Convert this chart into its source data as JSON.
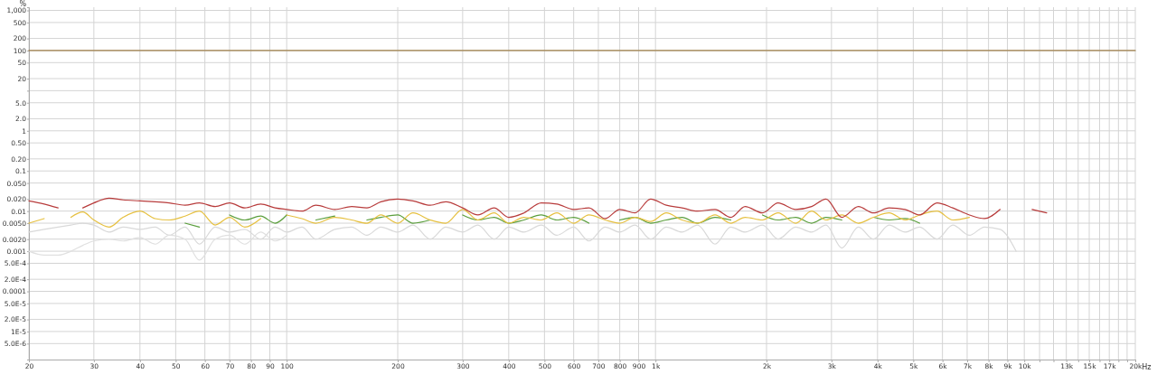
{
  "chart_data": {
    "type": "line",
    "ylabel": "%",
    "log": "xy",
    "grid": true,
    "x": [
      20,
      22,
      24,
      26,
      28,
      30,
      33,
      36,
      40,
      44,
      48,
      53,
      58,
      64,
      70,
      77,
      85,
      93,
      100,
      110,
      120,
      135,
      150,
      165,
      180,
      200,
      220,
      245,
      270,
      300,
      330,
      365,
      400,
      440,
      490,
      540,
      600,
      660,
      730,
      800,
      880,
      970,
      1070,
      1180,
      1300,
      1450,
      1600,
      1750,
      1950,
      2150,
      2400,
      2650,
      2900,
      3200,
      3550,
      3900,
      4300,
      4750,
      5200,
      5800,
      6400,
      7100,
      7800,
      8600,
      9500,
      10500,
      11500
    ],
    "xlim": [
      20,
      20000
    ],
    "xticks": [
      20,
      30,
      40,
      50,
      60,
      70,
      80,
      90,
      100,
      200,
      300,
      400,
      500,
      600,
      700,
      800,
      900,
      {
        "value": 1000,
        "label": "1k"
      },
      {
        "value": 2000,
        "label": "2k"
      },
      {
        "value": 3000,
        "label": "3k"
      },
      {
        "value": 4000,
        "label": "4k"
      },
      {
        "value": 5000,
        "label": "5k"
      },
      {
        "value": 6000,
        "label": "6k"
      },
      {
        "value": 7000,
        "label": "7k"
      },
      {
        "value": 8000,
        "label": "8k"
      },
      {
        "value": 9000,
        "label": "9k"
      },
      {
        "value": 10000,
        "label": "10k"
      },
      {
        "value": 11000,
        "label": null
      },
      {
        "value": 12000,
        "label": null
      },
      {
        "value": 13000,
        "label": "13k"
      },
      {
        "value": 14000,
        "label": null
      },
      {
        "value": 15000,
        "label": "15k"
      },
      {
        "value": 16000,
        "label": null
      },
      {
        "value": 17000,
        "label": "17k"
      },
      {
        "value": 18000,
        "label": null
      },
      {
        "value": 19000,
        "label": null
      },
      {
        "value": 20000,
        "label": "20k"
      }
    ],
    "xlabel": "Hz",
    "ylim": [
      2e-06,
      1200
    ],
    "yticks": [
      {
        "value": 1000,
        "label": "1,000"
      },
      500,
      200,
      100,
      50,
      20,
      {
        "value": 10,
        "label": null
      },
      {
        "value": 5,
        "label": "5.0"
      },
      {
        "value": 2,
        "label": "2.0"
      },
      1,
      {
        "value": 0.5,
        "label": "0.50"
      },
      {
        "value": 0.2,
        "label": "0.20"
      },
      0.1,
      {
        "value": 0.05,
        "label": "0.050"
      },
      {
        "value": 0.02,
        "label": "0.020"
      },
      0.01,
      {
        "value": 0.005,
        "label": "0.0050"
      },
      {
        "value": 0.002,
        "label": "0.0020"
      },
      0.001,
      {
        "value": 0.0005,
        "label": "5.0E-4"
      },
      {
        "value": 0.0002,
        "label": "2.0E-4"
      },
      {
        "value": 0.0001,
        "label": "0.0001"
      },
      {
        "value": 5e-05,
        "label": "5.0E-5"
      },
      {
        "value": 2e-05,
        "label": "2.0E-5"
      },
      {
        "value": 1e-05,
        "label": "1E-5"
      },
      {
        "value": 5e-06,
        "label": "5.0E-6"
      }
    ],
    "series": [
      {
        "color": "#a0804a",
        "x": [
          20,
          20000
        ],
        "values": [
          100,
          100
        ]
      },
      {
        "color": "#d9d9d9",
        "values": [
          0.003,
          0.0035,
          0.004,
          0.0045,
          0.005,
          0.0045,
          0.003,
          0.004,
          0.0035,
          0.004,
          0.0025,
          0.004,
          0.0015,
          0.004,
          0.003,
          0.0035,
          0.002,
          0.004,
          0.003,
          0.004,
          0.002,
          0.0035,
          0.004,
          0.0025,
          0.004,
          0.003,
          0.0045,
          0.002,
          0.004,
          0.003,
          0.0045,
          0.002,
          0.004,
          0.003,
          0.0045,
          0.0025,
          0.004,
          0.0018,
          0.004,
          0.003,
          0.0045,
          0.002,
          0.004,
          0.003,
          0.0045,
          0.0015,
          0.004,
          0.003,
          0.0045,
          0.002,
          0.004,
          0.003,
          0.0045,
          0.0012,
          0.004,
          0.002,
          0.0045,
          0.003,
          0.004,
          0.002,
          0.0045,
          0.0025,
          0.004,
          0.0035,
          0.001,
          null,
          null
        ]
      },
      {
        "color": "#e0e0e0",
        "values": [
          0.001,
          0.0008,
          0.0008,
          0.001,
          0.0014,
          0.0018,
          0.002,
          0.0018,
          0.0022,
          0.0015,
          0.0025,
          0.002,
          0.0006,
          0.002,
          0.0025,
          0.0015,
          0.003,
          0.0018,
          0.0025,
          null,
          null,
          null,
          null,
          null,
          null,
          null,
          null,
          null,
          null,
          null,
          null,
          null,
          null,
          null,
          null,
          null,
          null,
          null,
          null,
          null,
          null,
          null,
          null,
          null,
          null,
          null,
          null,
          null,
          null,
          null,
          null,
          null,
          null,
          null,
          null,
          null,
          null,
          null,
          null,
          null,
          null,
          null,
          null,
          null,
          null,
          null,
          null
        ]
      },
      {
        "color": "#5a9e3c",
        "values": [
          null,
          null,
          null,
          null,
          null,
          null,
          null,
          null,
          null,
          null,
          null,
          0.005,
          0.004,
          null,
          0.008,
          0.006,
          0.0075,
          0.005,
          0.008,
          null,
          0.006,
          0.0075,
          null,
          0.006,
          0.007,
          0.008,
          0.005,
          0.006,
          null,
          0.008,
          0.006,
          0.007,
          0.005,
          0.006,
          0.008,
          0.006,
          0.007,
          0.005,
          null,
          0.006,
          0.007,
          0.005,
          0.006,
          0.007,
          0.005,
          0.007,
          0.006,
          null,
          0.008,
          0.006,
          0.007,
          0.005,
          0.007,
          0.006,
          null,
          0.007,
          0.006,
          0.0065,
          0.005,
          null,
          null,
          null,
          null,
          null,
          null,
          null,
          null
        ]
      },
      {
        "color": "#e6c040",
        "values": [
          0.005,
          0.0065,
          null,
          0.007,
          0.0095,
          0.006,
          0.004,
          0.007,
          0.01,
          0.0065,
          0.006,
          0.0075,
          0.01,
          0.0045,
          0.007,
          0.004,
          0.0065,
          null,
          0.008,
          0.0065,
          0.005,
          0.007,
          0.006,
          0.005,
          0.008,
          0.005,
          0.009,
          0.006,
          0.005,
          0.011,
          0.006,
          0.009,
          0.005,
          0.007,
          0.006,
          0.009,
          0.005,
          0.008,
          0.006,
          0.005,
          0.007,
          0.0055,
          0.009,
          0.006,
          0.005,
          0.008,
          0.005,
          0.007,
          0.006,
          0.009,
          0.005,
          0.01,
          0.006,
          0.008,
          0.005,
          0.007,
          0.009,
          0.006,
          0.008,
          0.01,
          0.006,
          0.007,
          null,
          null,
          null,
          null,
          null
        ]
      },
      {
        "color": "#b83c3c",
        "values": [
          0.018,
          0.015,
          0.012,
          null,
          0.012,
          0.016,
          0.021,
          0.019,
          0.018,
          0.017,
          0.016,
          0.014,
          0.016,
          0.013,
          0.016,
          0.012,
          0.015,
          0.012,
          0.011,
          0.01,
          0.014,
          0.011,
          0.013,
          0.012,
          0.017,
          0.02,
          0.018,
          0.014,
          0.017,
          0.012,
          0.008,
          0.012,
          0.007,
          0.009,
          0.016,
          0.015,
          0.011,
          0.012,
          0.0065,
          0.011,
          0.009,
          0.02,
          0.014,
          0.012,
          0.01,
          0.011,
          0.007,
          0.013,
          0.009,
          0.016,
          0.011,
          0.013,
          0.02,
          0.007,
          0.013,
          0.009,
          0.012,
          0.011,
          0.008,
          0.016,
          0.012,
          0.008,
          0.0065,
          0.011,
          null,
          0.011,
          0.009
        ]
      }
    ]
  }
}
